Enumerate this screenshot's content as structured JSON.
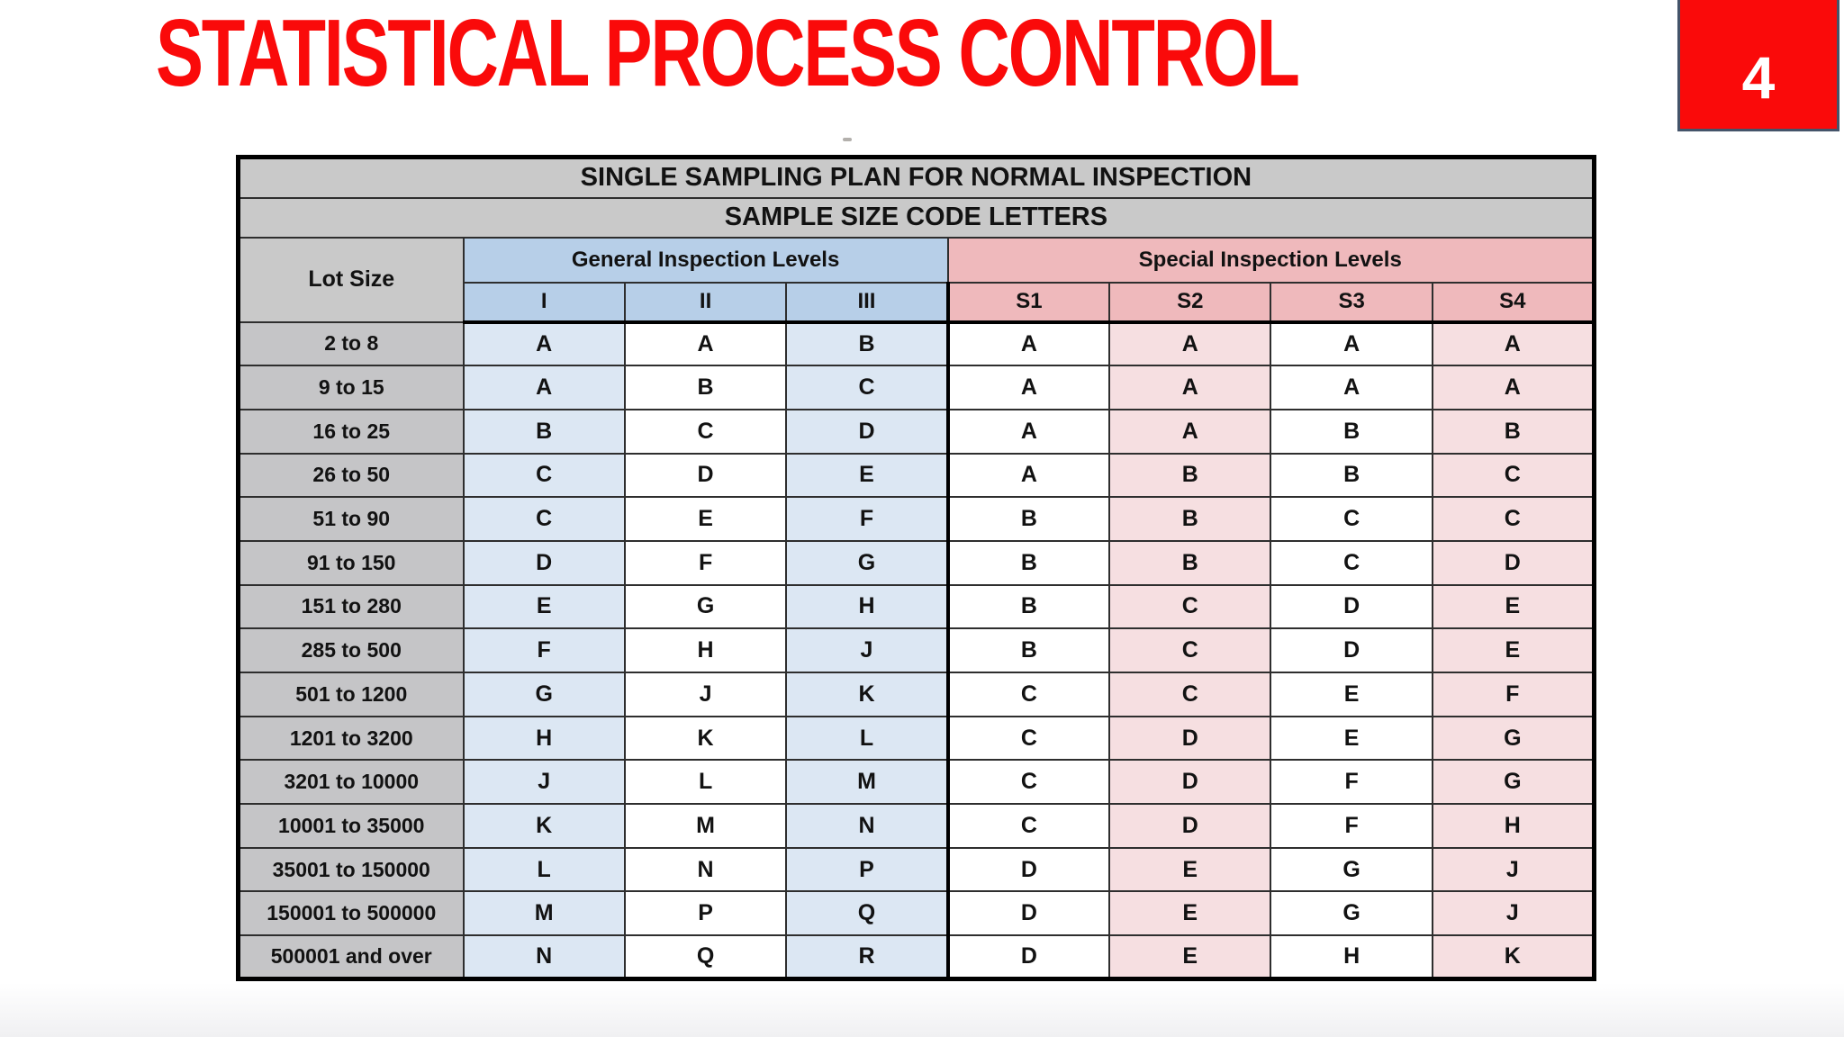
{
  "slide": {
    "title": "STATISTICAL PROCESS CONTROL",
    "page_number": "4"
  },
  "table": {
    "title": "SINGLE SAMPLING PLAN FOR NORMAL INSPECTION",
    "subtitle": "SAMPLE SIZE CODE LETTERS",
    "lot_size_header": "Lot Size",
    "general_header": "General Inspection Levels",
    "special_header": "Special Inspection Levels",
    "general_levels": [
      "I",
      "II",
      "III"
    ],
    "special_levels": [
      "S1",
      "S2",
      "S3",
      "S4"
    ],
    "rows": [
      {
        "lot_size": "2 to 8",
        "codes": [
          "A",
          "A",
          "B",
          "A",
          "A",
          "A",
          "A"
        ]
      },
      {
        "lot_size": "9 to 15",
        "codes": [
          "A",
          "B",
          "C",
          "A",
          "A",
          "A",
          "A"
        ]
      },
      {
        "lot_size": "16 to 25",
        "codes": [
          "B",
          "C",
          "D",
          "A",
          "A",
          "B",
          "B"
        ]
      },
      {
        "lot_size": "26 to 50",
        "codes": [
          "C",
          "D",
          "E",
          "A",
          "B",
          "B",
          "C"
        ]
      },
      {
        "lot_size": "51 to 90",
        "codes": [
          "C",
          "E",
          "F",
          "B",
          "B",
          "C",
          "C"
        ]
      },
      {
        "lot_size": "91 to 150",
        "codes": [
          "D",
          "F",
          "G",
          "B",
          "B",
          "C",
          "D"
        ]
      },
      {
        "lot_size": "151 to 280",
        "codes": [
          "E",
          "G",
          "H",
          "B",
          "C",
          "D",
          "E"
        ]
      },
      {
        "lot_size": "285 to 500",
        "codes": [
          "F",
          "H",
          "J",
          "B",
          "C",
          "D",
          "E"
        ]
      },
      {
        "lot_size": "501 to 1200",
        "codes": [
          "G",
          "J",
          "K",
          "C",
          "C",
          "E",
          "F"
        ]
      },
      {
        "lot_size": "1201 to 3200",
        "codes": [
          "H",
          "K",
          "L",
          "C",
          "D",
          "E",
          "G"
        ]
      },
      {
        "lot_size": "3201 to 10000",
        "codes": [
          "J",
          "L",
          "M",
          "C",
          "D",
          "F",
          "G"
        ]
      },
      {
        "lot_size": "10001 to 35000",
        "codes": [
          "K",
          "M",
          "N",
          "C",
          "D",
          "F",
          "H"
        ]
      },
      {
        "lot_size": "35001 to 150000",
        "codes": [
          "L",
          "N",
          "P",
          "D",
          "E",
          "G",
          "J"
        ]
      },
      {
        "lot_size": "150001 to 500000",
        "codes": [
          "M",
          "P",
          "Q",
          "D",
          "E",
          "G",
          "J"
        ]
      },
      {
        "lot_size": "500001 and over",
        "codes": [
          "N",
          "Q",
          "R",
          "D",
          "E",
          "H",
          "K"
        ]
      }
    ],
    "colors": {
      "accent_red": "#FA0A0A",
      "badge_border": "#44546A",
      "header_gray": "#C9C9C9",
      "row_label_gray": "#C5C5C7",
      "general_header_blue": "#B7CFE8",
      "special_header_pink": "#EFB9BC",
      "cell_blue": "#DCE7F3",
      "cell_pink": "#F6DFE1"
    }
  }
}
